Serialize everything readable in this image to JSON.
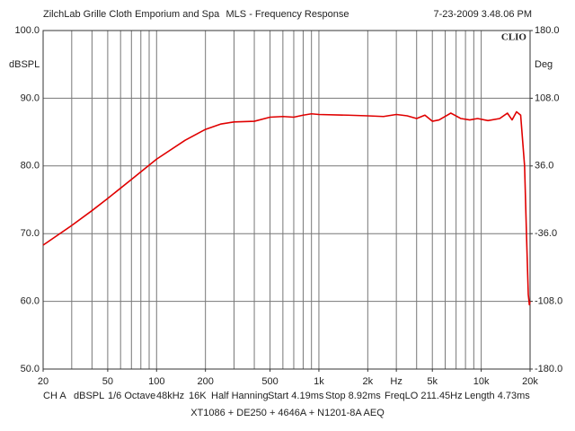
{
  "chart_data": {
    "type": "line",
    "header": [
      "ZilchLab Grille Cloth Emporium and Spa",
      "MLS - Frequency Response",
      "7-23-2009 3.48.06 PM"
    ],
    "logo": "CLIO",
    "y_label": "dBSPL",
    "y2_label": "Deg",
    "footer": [
      "CH A",
      "dBSPL",
      "1/6 Octave",
      "48kHz",
      "16K",
      "Half Hanning",
      "Start 4.19ms",
      "Stop 8.92ms",
      "FreqLO 211.45Hz",
      "Length 4.73ms"
    ],
    "caption": "XT1086 + DE250 + 4646A + N1201-8A AEQ",
    "x_log": true,
    "xlim": [
      20,
      20000
    ],
    "xticks": [
      20,
      50,
      100,
      200,
      500,
      {
        "value": 1000,
        "label": "1k"
      },
      {
        "value": 2000,
        "label": "2k"
      },
      {
        "value": 3000,
        "label": "Hz"
      },
      {
        "value": 5000,
        "label": "5k"
      },
      {
        "value": 10000,
        "label": "10k"
      },
      {
        "value": 20000,
        "label": "20k"
      }
    ],
    "xgrid": [
      20,
      30,
      40,
      50,
      60,
      70,
      80,
      90,
      100,
      200,
      300,
      400,
      500,
      600,
      700,
      800,
      900,
      1000,
      2000,
      3000,
      4000,
      5000,
      6000,
      7000,
      8000,
      9000,
      10000,
      20000
    ],
    "ylim": [
      50,
      100
    ],
    "yticks": [
      {
        "value": 50,
        "label": "50.0"
      },
      {
        "value": 60,
        "label": "60.0"
      },
      {
        "value": 70,
        "label": "70.0"
      },
      {
        "value": 80,
        "label": "80.0"
      },
      {
        "value": 90,
        "label": "90.0"
      },
      {
        "value": 100,
        "label": "100.0"
      }
    ],
    "y2lim": [
      -180,
      180
    ],
    "y2ticks": [
      {
        "value": -180,
        "label": "-180.0"
      },
      {
        "value": -108,
        "label": "-108.0"
      },
      {
        "value": -36,
        "label": "-36.0"
      },
      {
        "value": 36,
        "label": "36.0"
      },
      {
        "value": 108,
        "label": "108.0"
      },
      {
        "value": 180,
        "label": "180.0"
      }
    ],
    "grid": true,
    "color": "#e00000",
    "x": [
      20,
      30,
      40,
      50,
      70,
      100,
      150,
      200,
      250,
      300,
      400,
      500,
      600,
      700,
      800,
      900,
      1000,
      1500,
      2000,
      2500,
      3000,
      3500,
      4000,
      4500,
      5000,
      5500,
      6500,
      7500,
      8500,
      9500,
      11000,
      13000,
      14500,
      15500,
      16500,
      17500,
      18500,
      19000,
      19500,
      19800,
      20000
    ],
    "values": [
      68.3,
      71.2,
      73.4,
      75.2,
      78.0,
      81.0,
      83.8,
      85.4,
      86.2,
      86.5,
      86.6,
      87.2,
      87.3,
      87.2,
      87.5,
      87.7,
      87.6,
      87.5,
      87.4,
      87.3,
      87.6,
      87.4,
      87.0,
      87.5,
      86.6,
      86.8,
      87.8,
      87.0,
      86.8,
      87.0,
      86.7,
      87.0,
      87.8,
      86.8,
      88.0,
      87.5,
      80.0,
      70.0,
      61.0,
      59.5,
      60.0
    ]
  }
}
